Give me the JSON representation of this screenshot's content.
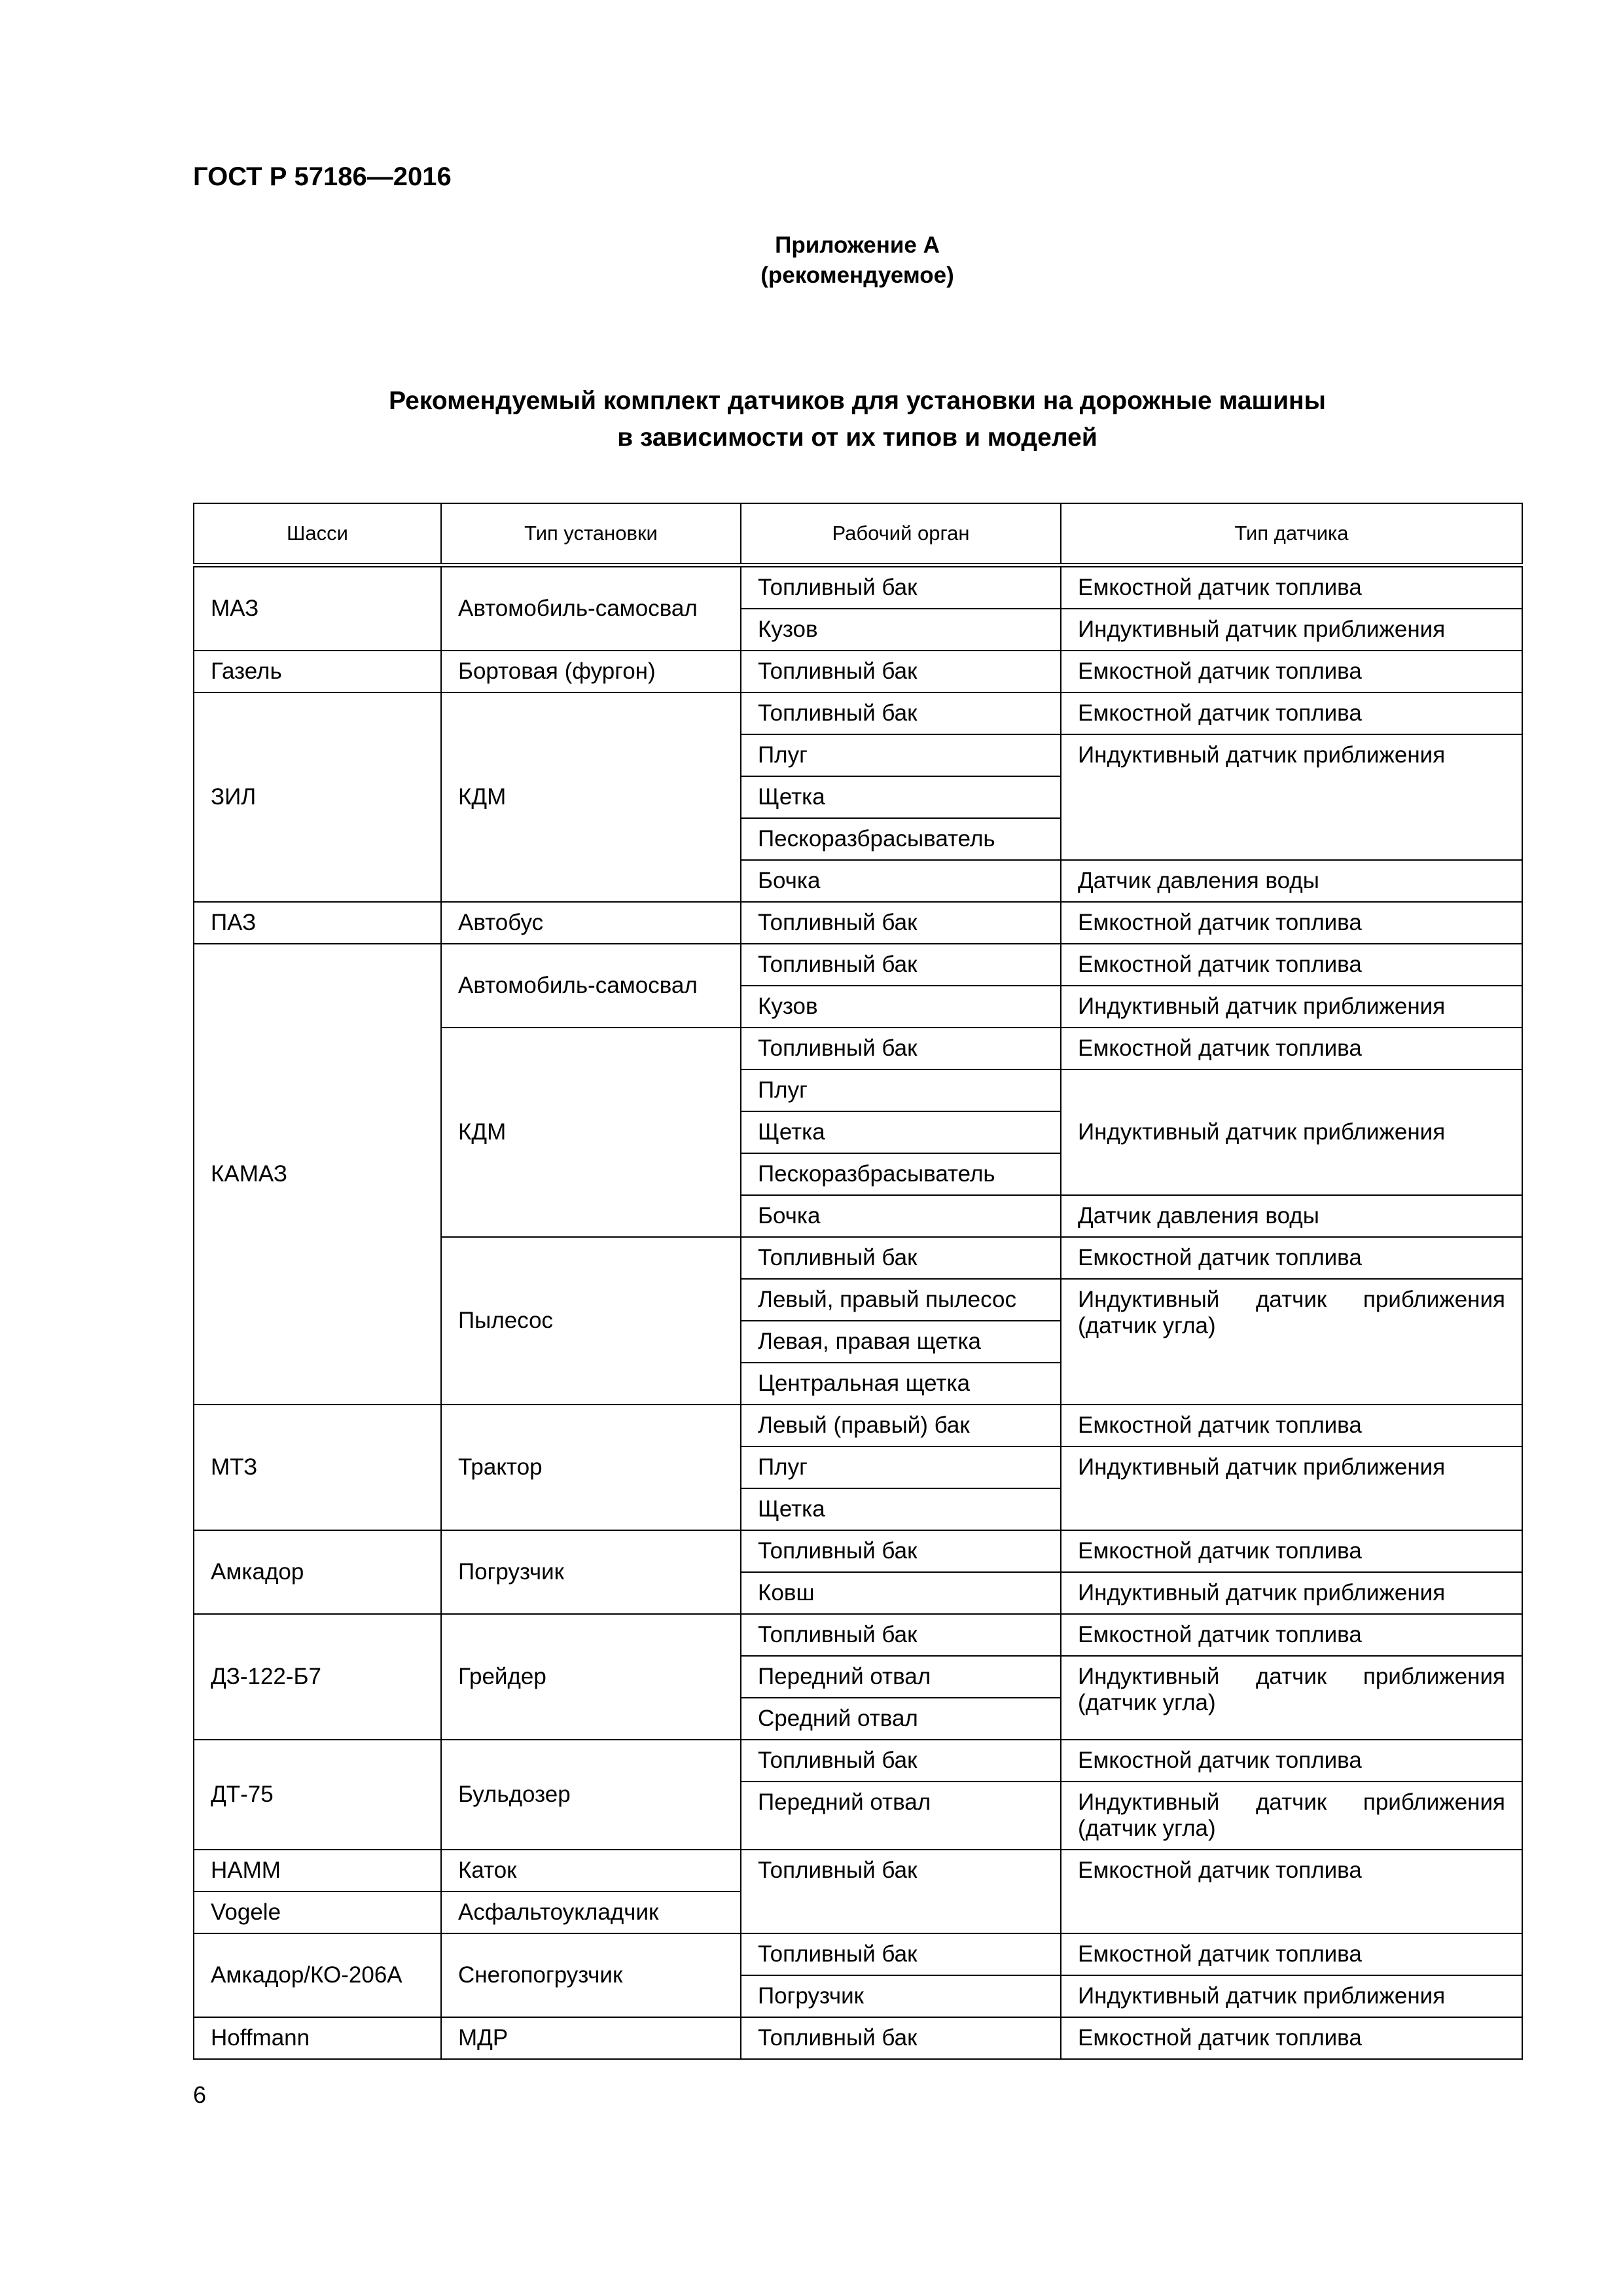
{
  "header": {
    "doc_code": "ГОСТ Р 57186—2016"
  },
  "appendix": {
    "title": "Приложение А",
    "status": "(рекомендуемое)"
  },
  "table_title": {
    "line1": "Рекомендуемый комплект датчиков для установки на дорожные машины",
    "line2": "в зависимости от их типов и моделей"
  },
  "table": {
    "columns": [
      "Шасси",
      "Тип установки",
      "Рабочий орган",
      "Тип датчика"
    ],
    "rows": [
      [
        {
          "t": "МАЗ",
          "rs": 2
        },
        {
          "t": "Автомобиль-самосвал",
          "rs": 2
        },
        {
          "t": "Топливный бак"
        },
        {
          "t": "Емкостной датчик топлива"
        }
      ],
      [
        {
          "t": "Кузов"
        },
        {
          "t": "Индуктивный датчик приближения"
        }
      ],
      [
        {
          "t": "Газель"
        },
        {
          "t": "Бортовая (фургон)"
        },
        {
          "t": "Топливный бак"
        },
        {
          "t": "Емкостной датчик топлива"
        }
      ],
      [
        {
          "t": "ЗИЛ",
          "rs": 5
        },
        {
          "t": "КДМ",
          "rs": 5
        },
        {
          "t": "Топливный бак"
        },
        {
          "t": "Емкостной датчик топлива"
        }
      ],
      [
        {
          "t": "Плуг"
        },
        {
          "t": "Индуктивный датчик приближения",
          "rs": 3
        }
      ],
      [
        {
          "t": "Щетка"
        }
      ],
      [
        {
          "t": "Пескоразбрасыватель"
        }
      ],
      [
        {
          "t": "Бочка"
        },
        {
          "t": "Датчик давления воды"
        }
      ],
      [
        {
          "t": "ПАЗ"
        },
        {
          "t": "Автобус"
        },
        {
          "t": "Топливный бак"
        },
        {
          "t": "Емкостной датчик топлива"
        }
      ],
      [
        {
          "t": "КАМАЗ",
          "rs": 11
        },
        {
          "t": "Автомобиль-самосвал",
          "rs": 2
        },
        {
          "t": "Топливный бак"
        },
        {
          "t": "Емкостной датчик топлива"
        }
      ],
      [
        {
          "t": "Кузов"
        },
        {
          "t": "Индуктивный датчик приближения"
        }
      ],
      [
        {
          "t": "КДМ",
          "rs": 5
        },
        {
          "t": "Топливный бак"
        },
        {
          "t": "Емкостной датчик топлива"
        }
      ],
      [
        {
          "t": "Плуг"
        },
        {
          "t": "Индуктивный датчик приближения",
          "rs": 3
        }
      ],
      [
        {
          "t": "Щетка"
        }
      ],
      [
        {
          "t": "Пескоразбрасыватель"
        }
      ],
      [
        {
          "t": "Бочка"
        },
        {
          "t": "Датчик давления воды"
        }
      ],
      [
        {
          "t": "Пылесос",
          "rs": 4
        },
        {
          "t": "Топливный бак"
        },
        {
          "t": "Емкостной датчик топлива"
        }
      ],
      [
        {
          "t": "Левый, правый пылесос"
        },
        {
          "t": "Индуктивный датчик приближения (датчик угла)",
          "rs": 3
        }
      ],
      [
        {
          "t": "Левая, правая щетка"
        }
      ],
      [
        {
          "t": "Центральная щетка"
        }
      ],
      [
        {
          "t": "МТЗ",
          "rs": 3
        },
        {
          "t": "Трактор",
          "rs": 3
        },
        {
          "t": "Левый (правый) бак"
        },
        {
          "t": "Емкостной датчик топлива"
        }
      ],
      [
        {
          "t": "Плуг"
        },
        {
          "t": "Индуктивный датчик приближения",
          "rs": 2
        }
      ],
      [
        {
          "t": "Щетка"
        }
      ],
      [
        {
          "t": "Амкадор",
          "rs": 2
        },
        {
          "t": "Погрузчик",
          "rs": 2
        },
        {
          "t": "Топливный бак"
        },
        {
          "t": "Емкостной датчик топлива"
        }
      ],
      [
        {
          "t": "Ковш"
        },
        {
          "t": "Индуктивный датчик приближения"
        }
      ],
      [
        {
          "t": "ДЗ-122-Б7",
          "rs": 3
        },
        {
          "t": "Грейдер",
          "rs": 3
        },
        {
          "t": "Топливный бак"
        },
        {
          "t": "Емкостной датчик топлива"
        }
      ],
      [
        {
          "t": "Передний отвал"
        },
        {
          "t": "Индуктивный датчик приближения (датчик угла)",
          "rs": 2
        }
      ],
      [
        {
          "t": "Средний отвал"
        }
      ],
      [
        {
          "t": "ДТ-75",
          "rs": 2
        },
        {
          "t": "Бульдозер",
          "rs": 2
        },
        {
          "t": "Топливный бак"
        },
        {
          "t": "Емкостной датчик топлива"
        }
      ],
      [
        {
          "t": "Передний отвал"
        },
        {
          "t": "Индуктивный датчик приближения (датчик угла)"
        }
      ],
      [
        {
          "t": "HAMM"
        },
        {
          "t": "Каток"
        },
        {
          "t": "Топливный бак",
          "rs": 2
        },
        {
          "t": "Емкостной датчик топлива",
          "rs": 2
        }
      ],
      [
        {
          "t": "Vogele"
        },
        {
          "t": "Асфальтоукладчик"
        }
      ],
      [
        {
          "t": "Амкадор/КО-206А",
          "rs": 2
        },
        {
          "t": "Снегопогрузчик",
          "rs": 2
        },
        {
          "t": "Топливный бак"
        },
        {
          "t": "Емкостной датчик топлива"
        }
      ],
      [
        {
          "t": "Погрузчик"
        },
        {
          "t": "Индуктивный датчик приближения"
        }
      ],
      [
        {
          "t": "Hoffmann"
        },
        {
          "t": "МДР"
        },
        {
          "t": "Топливный бак"
        },
        {
          "t": "Емкостной датчик топлива"
        }
      ]
    ]
  },
  "footer": {
    "page_number": "6"
  }
}
